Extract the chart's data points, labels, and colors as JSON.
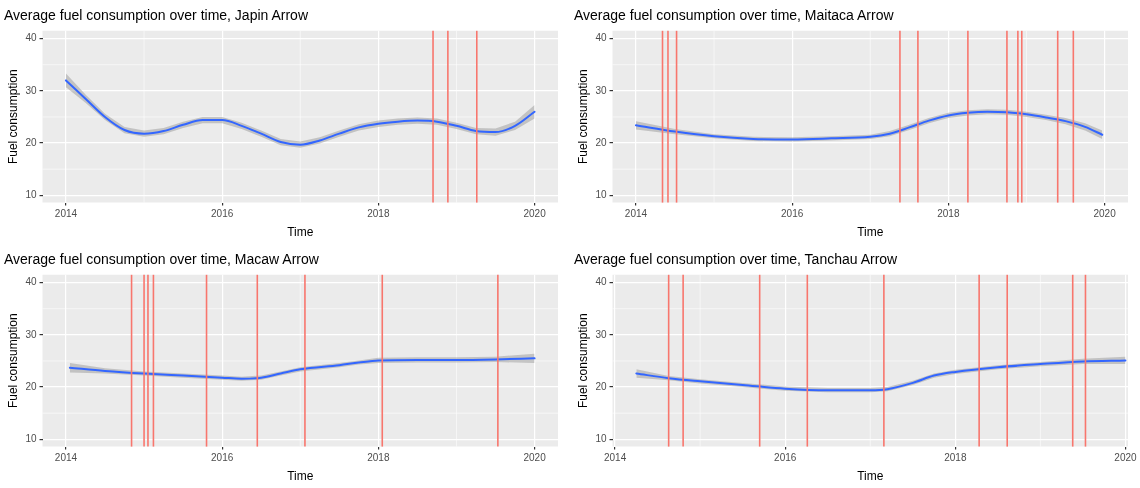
{
  "chart_data": [
    {
      "type": "line",
      "title": "Average fuel consumption over time, Japin Arrow",
      "xlabel": "Time",
      "ylabel": "Fuel consumption",
      "xlim": [
        2013.7,
        2020.3
      ],
      "ylim": [
        8.6,
        41.5
      ],
      "xticks": [
        2014,
        2016,
        2018,
        2020
      ],
      "yticks": [
        10,
        20,
        30,
        40
      ],
      "grid": true,
      "x": [
        2014,
        2014.25,
        2014.5,
        2014.75,
        2015,
        2015.25,
        2015.5,
        2015.75,
        2016,
        2016.25,
        2016.5,
        2016.75,
        2017,
        2017.25,
        2017.5,
        2017.75,
        2018,
        2018.25,
        2018.5,
        2018.75,
        2019,
        2019.25,
        2019.5,
        2019.75,
        2020
      ],
      "series": [
        {
          "color": "#3366ff",
          "values": [
            32,
            28.5,
            25,
            22.5,
            21.8,
            22.3,
            23.5,
            24.4,
            24.4,
            23.3,
            21.8,
            20.2,
            19.7,
            20.5,
            21.8,
            23,
            23.7,
            24.1,
            24.3,
            24.1,
            23.3,
            22.3,
            22.1,
            23.3,
            26
          ],
          "lower": [
            30.7,
            27.7,
            24.4,
            21.9,
            21.2,
            21.7,
            22.9,
            23.8,
            23.8,
            22.7,
            21.2,
            19.6,
            19.1,
            19.9,
            21.2,
            22.4,
            23.1,
            23.5,
            23.7,
            23.5,
            22.7,
            21.7,
            21.4,
            22.5,
            24.7
          ],
          "upper": [
            33.3,
            29.3,
            25.6,
            23.1,
            22.4,
            22.9,
            24.1,
            25,
            25,
            23.9,
            22.4,
            20.8,
            20.3,
            21.1,
            22.4,
            23.6,
            24.3,
            24.7,
            24.9,
            24.7,
            23.9,
            22.9,
            22.8,
            24.1,
            27.3
          ]
        }
      ],
      "ref_lines": [
        {
          "axis": "x",
          "value": 2018.7,
          "color": "#f8766d"
        },
        {
          "axis": "x",
          "value": 2018.89,
          "color": "#f8766d"
        },
        {
          "axis": "x",
          "value": 2019.26,
          "color": "#f8766d"
        }
      ]
    },
    {
      "type": "line",
      "title": "Average fuel consumption over time, Maitaca Arrow",
      "xlabel": "Time",
      "ylabel": "Fuel consumption",
      "xlim": [
        2013.7,
        2020.3
      ],
      "ylim": [
        8.6,
        41.5
      ],
      "xticks": [
        2014,
        2016,
        2018,
        2020
      ],
      "yticks": [
        10,
        20,
        30,
        40
      ],
      "grid": true,
      "x": [
        2014,
        2014.5,
        2015,
        2015.5,
        2016,
        2016.5,
        2017,
        2017.25,
        2017.5,
        2017.75,
        2018,
        2018.25,
        2018.5,
        2018.75,
        2019,
        2019.25,
        2019.5,
        2019.75,
        2019.97
      ],
      "series": [
        {
          "color": "#3366ff",
          "values": [
            23.4,
            22.2,
            21.3,
            20.8,
            20.7,
            20.9,
            21.2,
            21.8,
            23,
            24.3,
            25.3,
            25.8,
            26,
            25.9,
            25.5,
            24.9,
            24.2,
            23.1,
            21.6
          ],
          "lower": [
            22.6,
            21.7,
            20.9,
            20.4,
            20.3,
            20.5,
            20.8,
            21.3,
            22.5,
            23.8,
            24.8,
            25.3,
            25.5,
            25.4,
            25,
            24.4,
            23.6,
            22.4,
            20.8
          ],
          "upper": [
            24.2,
            22.7,
            21.7,
            21.2,
            21.1,
            21.3,
            21.6,
            22.3,
            23.5,
            24.8,
            25.8,
            26.3,
            26.5,
            26.4,
            26,
            25.4,
            24.8,
            23.8,
            22.4
          ]
        }
      ],
      "ref_lines": [
        {
          "axis": "x",
          "value": 2014.34,
          "color": "#f8766d"
        },
        {
          "axis": "x",
          "value": 2014.41,
          "color": "#f8766d"
        },
        {
          "axis": "x",
          "value": 2014.52,
          "color": "#f8766d"
        },
        {
          "axis": "x",
          "value": 2017.38,
          "color": "#f8766d"
        },
        {
          "axis": "x",
          "value": 2017.61,
          "color": "#f8766d"
        },
        {
          "axis": "x",
          "value": 2018.25,
          "color": "#f8766d"
        },
        {
          "axis": "x",
          "value": 2018.75,
          "color": "#f8766d"
        },
        {
          "axis": "x",
          "value": 2018.89,
          "color": "#f8766d"
        },
        {
          "axis": "x",
          "value": 2018.94,
          "color": "#f8766d"
        },
        {
          "axis": "x",
          "value": 2019.4,
          "color": "#f8766d"
        },
        {
          "axis": "x",
          "value": 2019.6,
          "color": "#f8766d"
        }
      ]
    },
    {
      "type": "line",
      "title": "Average fuel consumption over time, Macaw Arrow",
      "xlabel": "Time",
      "ylabel": "Fuel consumption",
      "xlim": [
        2013.7,
        2020.3
      ],
      "ylim": [
        8.6,
        41.5
      ],
      "xticks": [
        2014,
        2016,
        2018,
        2020
      ],
      "yticks": [
        10,
        20,
        30,
        40
      ],
      "grid": true,
      "x": [
        2014.05,
        2014.5,
        2015,
        2015.5,
        2016,
        2016.25,
        2016.5,
        2016.75,
        2017,
        2017.5,
        2017.75,
        2018,
        2018.5,
        2019,
        2019.5,
        2020
      ],
      "series": [
        {
          "color": "#3366ff",
          "values": [
            23.7,
            23.1,
            22.6,
            22.2,
            21.8,
            21.6,
            21.8,
            22.6,
            23.4,
            24.2,
            24.7,
            25.1,
            25.2,
            25.2,
            25.3,
            25.5
          ],
          "lower": [
            22.8,
            22.6,
            22.2,
            21.8,
            21.4,
            21.2,
            21.4,
            22.2,
            23,
            23.8,
            24.3,
            24.6,
            24.7,
            24.7,
            24.8,
            24.6
          ],
          "upper": [
            24.6,
            23.6,
            23,
            22.6,
            22.2,
            22,
            22.2,
            23,
            23.8,
            24.6,
            25.1,
            25.6,
            25.7,
            25.7,
            25.8,
            26.4
          ]
        }
      ],
      "ref_lines": [
        {
          "axis": "x",
          "value": 2014.84,
          "color": "#f8766d"
        },
        {
          "axis": "x",
          "value": 2015,
          "color": "#f8766d"
        },
        {
          "axis": "x",
          "value": 2015.05,
          "color": "#f8766d"
        },
        {
          "axis": "x",
          "value": 2015.12,
          "color": "#f8766d"
        },
        {
          "axis": "x",
          "value": 2015.8,
          "color": "#f8766d"
        },
        {
          "axis": "x",
          "value": 2016.45,
          "color": "#f8766d"
        },
        {
          "axis": "x",
          "value": 2017.06,
          "color": "#f8766d"
        },
        {
          "axis": "x",
          "value": 2018.05,
          "color": "#f8766d"
        },
        {
          "axis": "x",
          "value": 2019.53,
          "color": "#f8766d"
        }
      ]
    },
    {
      "type": "line",
      "title": "Average fuel consumption over time, Tanchau Arrow",
      "xlabel": "Time",
      "ylabel": "Fuel consumption",
      "xlim": [
        2013.97,
        2020.03
      ],
      "ylim": [
        8.6,
        41.5
      ],
      "xticks": [
        2014,
        2016,
        2018,
        2020
      ],
      "yticks": [
        10,
        20,
        30,
        40
      ],
      "grid": true,
      "x": [
        2014.25,
        2014.63,
        2015,
        2015.5,
        2016,
        2016.5,
        2017,
        2017.2,
        2017.5,
        2017.75,
        2018,
        2018.5,
        2019,
        2019.5,
        2020
      ],
      "series": [
        {
          "color": "#3366ff",
          "values": [
            22.6,
            21.7,
            21.1,
            20.4,
            19.7,
            19.4,
            19.4,
            19.6,
            20.8,
            22.2,
            22.9,
            23.8,
            24.4,
            24.9,
            25.1
          ],
          "lower": [
            21.8,
            21.3,
            20.7,
            20,
            19.3,
            19,
            19,
            19.2,
            20.4,
            21.8,
            22.5,
            23.4,
            24,
            24.4,
            24.4
          ],
          "upper": [
            23.4,
            22.1,
            21.5,
            20.8,
            20.1,
            19.8,
            19.8,
            20,
            21.2,
            22.6,
            23.3,
            24.2,
            24.8,
            25.4,
            25.8
          ]
        }
      ],
      "ref_lines": [
        {
          "axis": "x",
          "value": 2014.63,
          "color": "#f8766d"
        },
        {
          "axis": "x",
          "value": 2014.8,
          "color": "#f8766d"
        },
        {
          "axis": "x",
          "value": 2015.7,
          "color": "#f8766d"
        },
        {
          "axis": "x",
          "value": 2016.26,
          "color": "#f8766d"
        },
        {
          "axis": "x",
          "value": 2017.16,
          "color": "#f8766d"
        },
        {
          "axis": "x",
          "value": 2018.28,
          "color": "#f8766d"
        },
        {
          "axis": "x",
          "value": 2018.61,
          "color": "#f8766d"
        },
        {
          "axis": "x",
          "value": 2019.38,
          "color": "#f8766d"
        },
        {
          "axis": "x",
          "value": 2019.53,
          "color": "#f8766d"
        }
      ]
    }
  ]
}
